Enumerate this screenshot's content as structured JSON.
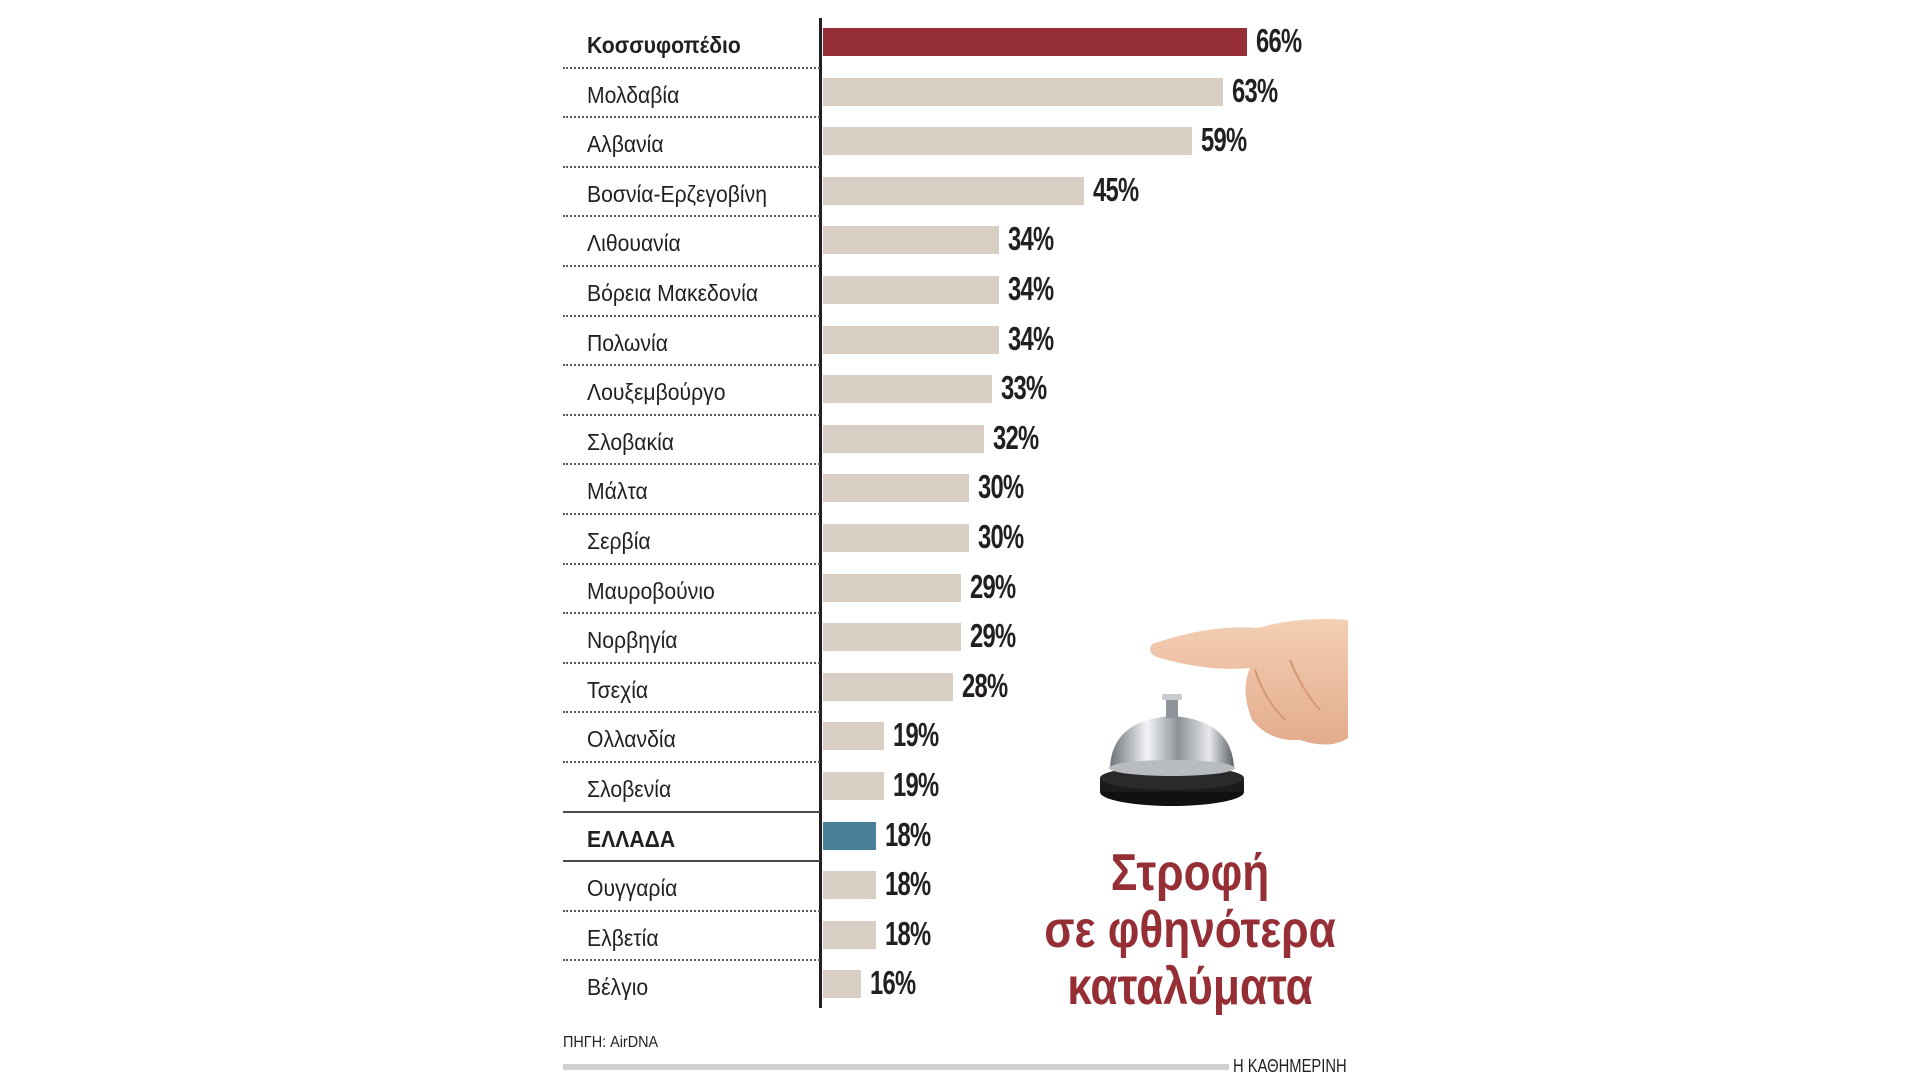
{
  "title": {
    "line1": "Στροφή",
    "line2": "σε φθηνότερα",
    "line3": "καταλύματα"
  },
  "source": "ΠΗΓΗ: AirDNA",
  "publisher": "Η ΚΑΘΗΜΕΡΙΝΗ",
  "illustration": "hotel-bell-with-hand",
  "colors": {
    "highlight_top": "#962f35",
    "highlight_greece": "#4a7f99",
    "default_bar": "#d9cec3",
    "title": "#962f35",
    "text": "#231f20"
  },
  "chart_data": {
    "type": "bar",
    "orientation": "horizontal",
    "title": "Στροφή σε φθηνότερα καταλύματα",
    "xlabel": "",
    "ylabel": "",
    "value_suffix": "%",
    "grid": false,
    "legend": null,
    "source": "ΠΗΓΗ: AirDNA",
    "categories": [
      "Κοσσυφοπέδιο",
      "Μολδαβία",
      "Αλβανία",
      "Βοσνία-Ερζεγοβίνη",
      "Λιθουανία",
      "Βόρεια Μακεδονία",
      "Πολωνία",
      "Λουξεμβούργο",
      "Σλοβακία",
      "Μάλτα",
      "Σερβία",
      "Μαυροβούνιο",
      "Νορβηγία",
      "Τσεχία",
      "Ολλανδία",
      "Σλοβενία",
      "ΕΛΛΑΔΑ",
      "Ουγγαρία",
      "Ελβετία",
      "Βέλγιο"
    ],
    "values": [
      66,
      63,
      59,
      45,
      34,
      34,
      34,
      33,
      32,
      30,
      30,
      29,
      29,
      28,
      19,
      19,
      18,
      18,
      18,
      16
    ],
    "labels": [
      "66%",
      "63%",
      "59%",
      "45%",
      "34%",
      "34%",
      "34%",
      "33%",
      "32%",
      "30%",
      "30%",
      "29%",
      "29%",
      "28%",
      "19%",
      "19%",
      "18%",
      "18%",
      "18%",
      "16%"
    ],
    "highlights": {
      "0": "#962f35",
      "16": "#4a7f99"
    },
    "bold_rows": [
      0,
      16
    ]
  }
}
